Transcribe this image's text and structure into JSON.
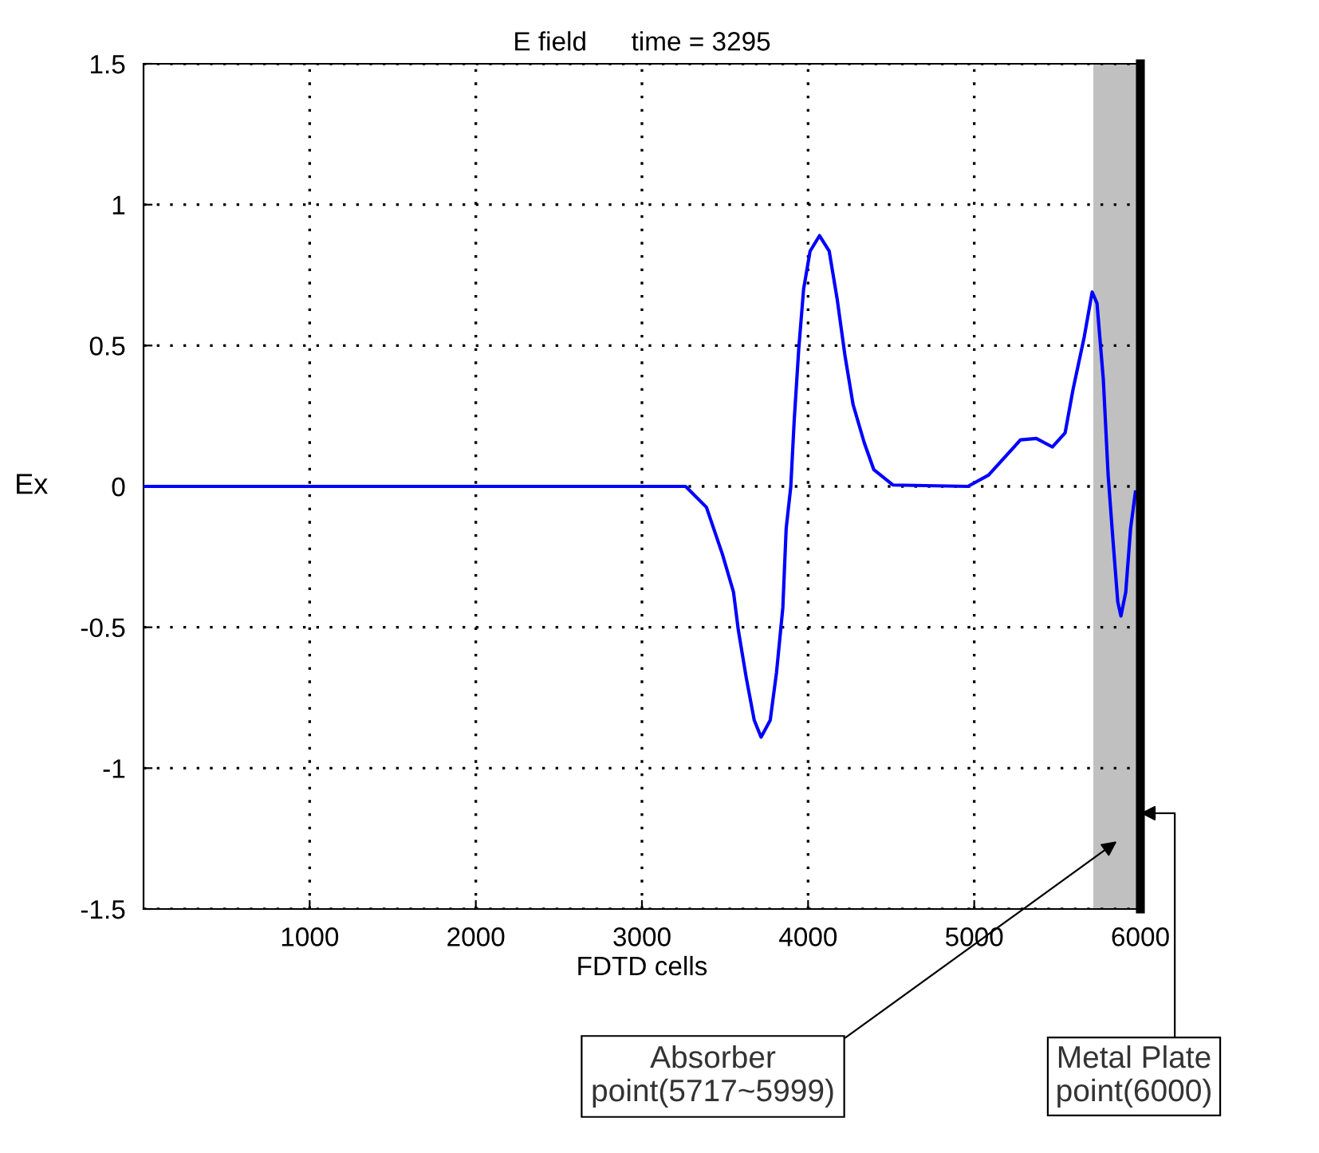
{
  "chart_data": {
    "type": "line",
    "title": "E field      time = 3295",
    "xlabel": "FDTD cells",
    "ylabel": "Ex",
    "xlim": [
      0,
      6000
    ],
    "xticks": [
      1000,
      2000,
      3000,
      4000,
      5000,
      6000
    ],
    "ylim": [
      -1.5,
      1.5
    ],
    "yticks": [
      -1.5,
      -1,
      -0.5,
      0,
      0.5,
      1,
      1.5
    ],
    "grid": true,
    "legend": false,
    "marker": "none",
    "line_style": "solid",
    "series": [
      {
        "color": "#0000ff",
        "x": [
          0,
          3263,
          3388,
          3484,
          3551,
          3580,
          3628,
          3676,
          3717,
          3772,
          3810,
          3848,
          3868,
          3896,
          3916,
          3944,
          3973,
          4012,
          4069,
          4127,
          4175,
          4223,
          4271,
          4338,
          4395,
          4510,
          4962,
          5086,
          5278,
          5374,
          5470,
          5547,
          5595,
          5662,
          5710,
          5739,
          5777,
          5806,
          5835,
          5864,
          5883,
          5912,
          5941,
          5970
        ],
        "values": [
          0,
          0,
          -0.074,
          -0.24,
          -0.375,
          -0.51,
          -0.68,
          -0.83,
          -0.89,
          -0.83,
          -0.66,
          -0.43,
          -0.15,
          0,
          0.23,
          0.49,
          0.7,
          0.835,
          0.89,
          0.835,
          0.665,
          0.46,
          0.29,
          0.155,
          0.06,
          0.005,
          0,
          0.04,
          0.165,
          0.17,
          0.14,
          0.19,
          0.345,
          0.53,
          0.69,
          0.65,
          0.38,
          0.04,
          -0.19,
          -0.41,
          -0.46,
          -0.375,
          -0.15,
          -0.02
        ]
      }
    ],
    "bands": [
      {
        "axis": "x",
        "from": 5717,
        "to": 5999,
        "color": "#c0c0c0"
      }
    ],
    "ref_lines": [
      {
        "axis": "x",
        "value": 6000,
        "color": "#000000"
      }
    ],
    "annotations": [
      "Absorber\npoint(5717~5999)",
      {
        "text": "Metal Plate\npoint(6000)",
        "x": 6000,
        "y": -1.16
      }
    ]
  }
}
